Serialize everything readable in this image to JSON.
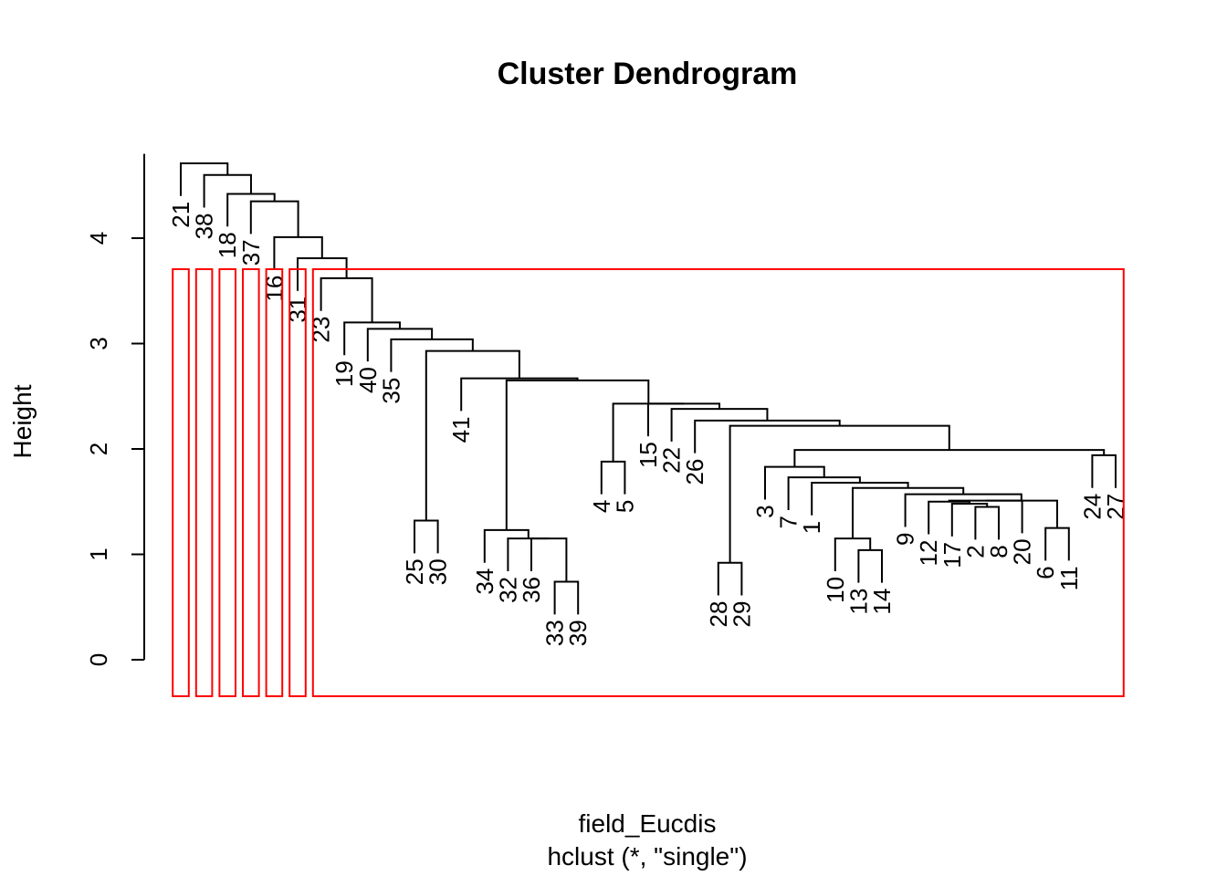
{
  "chart_data": {
    "type": "dendrogram",
    "title": "Cluster Dendrogram",
    "xlabel": "field_Eucdis",
    "sub": "hclust (*, \"single\")",
    "ylabel": "Height",
    "ylim": [
      0,
      4.8
    ],
    "yticks": [
      0,
      1,
      2,
      3,
      4
    ],
    "highlight_color": "#ff0000",
    "order": [
      21,
      38,
      18,
      37,
      16,
      31,
      23,
      19,
      40,
      35,
      25,
      30,
      41,
      34,
      32,
      36,
      33,
      39,
      4,
      5,
      15,
      22,
      26,
      28,
      29,
      3,
      7,
      1,
      10,
      13,
      14,
      9,
      12,
      17,
      2,
      8,
      20,
      6,
      11,
      24,
      27
    ],
    "merges": [
      {
        "a": "33",
        "b": "39",
        "h": 0.74
      },
      {
        "a": "25",
        "b": "30",
        "h": 1.32
      },
      {
        "a": "28",
        "b": "29",
        "h": 0.92
      },
      {
        "a": "13",
        "b": "14",
        "h": 1.04
      },
      {
        "a": "6",
        "b": "11",
        "h": 1.25
      },
      {
        "a": "2",
        "b": "8",
        "h": 1.45
      },
      {
        "a": "17",
        "b": "(2,8)",
        "h": 1.48
      },
      {
        "a": "12",
        "b": "(17,2,8)",
        "h": 1.5
      },
      {
        "a": "(12..8)",
        "b": "20",
        "h": 1.51
      },
      {
        "a": "(12..20)",
        "b": "(6,11)",
        "h": 1.51
      },
      {
        "a": "36",
        "b": "(33,39)",
        "h": 1.15
      },
      {
        "a": "32",
        "b": "(36,33,39)",
        "h": 1.15
      },
      {
        "a": "34",
        "b": "(32..39)",
        "h": 1.23
      },
      {
        "a": "10",
        "b": "(13,14)",
        "h": 1.15
      },
      {
        "a": "9",
        "b": "(12..11)",
        "h": 1.57
      },
      {
        "a": "(10,13,14)",
        "b": "(9..11)",
        "h": 1.63
      },
      {
        "a": "1",
        "b": "(10..11)",
        "h": 1.68
      },
      {
        "a": "7",
        "b": "(1..11)",
        "h": 1.73
      },
      {
        "a": "3",
        "b": "(7..11)",
        "h": 1.83
      },
      {
        "a": "24",
        "b": "27",
        "h": 1.94
      },
      {
        "a": "(3..11)",
        "b": "(24,27)",
        "h": 1.99
      },
      {
        "a": "(28,29)",
        "b": "(3..27)",
        "h": 2.22
      },
      {
        "a": "4",
        "b": "5",
        "h": 1.88
      },
      {
        "a": "26",
        "b": "(28..27)",
        "h": 2.27
      },
      {
        "a": "22",
        "b": "(26..27)",
        "h": 2.38
      },
      {
        "a": "15",
        "b": "(22..27)",
        "h": 2.43
      },
      {
        "a": "(4,5)",
        "b": "(15..27)",
        "h": 2.43
      },
      {
        "a": "(34..39)",
        "b": "(4..27)",
        "h": 2.65
      },
      {
        "a": "41",
        "b": "(34..27)",
        "h": 2.67
      },
      {
        "a": "(25,30)",
        "b": "(41..27)",
        "h": 2.93
      },
      {
        "a": "35",
        "b": "(25..27)",
        "h": 3.04
      },
      {
        "a": "40",
        "b": "(35..27)",
        "h": 3.14
      },
      {
        "a": "19",
        "b": "(40..27)",
        "h": 3.2
      },
      {
        "a": "23",
        "b": "(19..27)",
        "h": 3.62
      },
      {
        "a": "31",
        "b": "(23..27)",
        "h": 3.81
      },
      {
        "a": "16",
        "b": "(31..27)",
        "h": 4.01
      },
      {
        "a": "37",
        "b": "(16..27)",
        "h": 4.35
      },
      {
        "a": "18",
        "b": "(37..27)",
        "h": 4.42
      },
      {
        "a": "38",
        "b": "(18..27)",
        "h": 4.6
      },
      {
        "a": "21",
        "b": "(38..27)",
        "h": 4.71
      }
    ],
    "clusters": [
      {
        "from": "21",
        "to": "21"
      },
      {
        "from": "38",
        "to": "38"
      },
      {
        "from": "18",
        "to": "18"
      },
      {
        "from": "37",
        "to": "37"
      },
      {
        "from": "16",
        "to": "16"
      },
      {
        "from": "31",
        "to": "31"
      },
      {
        "from": "23",
        "to": "27"
      }
    ]
  }
}
